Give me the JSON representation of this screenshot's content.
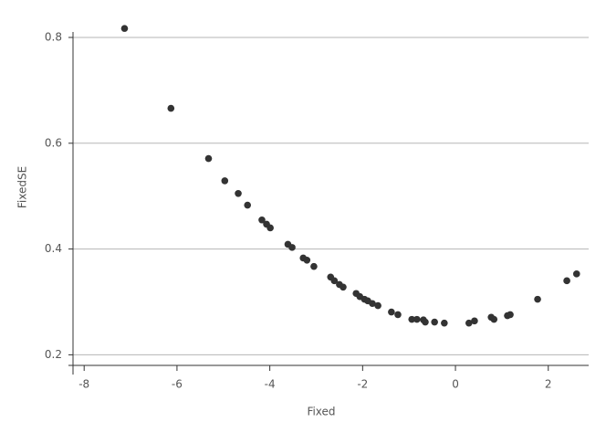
{
  "chart_data": {
    "type": "scatter",
    "x_label": "Fixed",
    "y_label": "FixedSE",
    "color": "#333333",
    "xlim": [
      -8.24,
      2.87
    ],
    "ylim": [
      0.18,
      0.82
    ],
    "xticks": [
      -8,
      -6,
      -4,
      -2,
      0,
      2
    ],
    "yticks": [
      0.2,
      0.4,
      0.6,
      0.8
    ],
    "grid": true,
    "x": [
      -7.13,
      -6.13,
      -5.32,
      -4.97,
      -4.68,
      -4.48,
      -4.17,
      -4.07,
      -3.99,
      -3.61,
      -3.52,
      -3.28,
      -3.2,
      -3.05,
      -2.69,
      -2.61,
      -2.5,
      -2.42,
      -2.14,
      -2.06,
      -1.96,
      -1.89,
      -1.79,
      -1.67,
      -1.38,
      -1.24,
      -0.94,
      -0.83,
      -0.69,
      -0.65,
      -0.45,
      -0.24,
      0.29,
      0.41,
      0.77,
      0.83,
      1.12,
      1.18,
      1.77,
      2.4,
      2.61
    ],
    "values": [
      0.817,
      0.666,
      0.571,
      0.529,
      0.505,
      0.483,
      0.455,
      0.447,
      0.44,
      0.409,
      0.403,
      0.383,
      0.379,
      0.367,
      0.347,
      0.34,
      0.333,
      0.328,
      0.316,
      0.31,
      0.305,
      0.302,
      0.297,
      0.293,
      0.281,
      0.276,
      0.267,
      0.267,
      0.266,
      0.262,
      0.262,
      0.26,
      0.26,
      0.264,
      0.271,
      0.267,
      0.274,
      0.276,
      0.305,
      0.34,
      0.353
    ]
  }
}
